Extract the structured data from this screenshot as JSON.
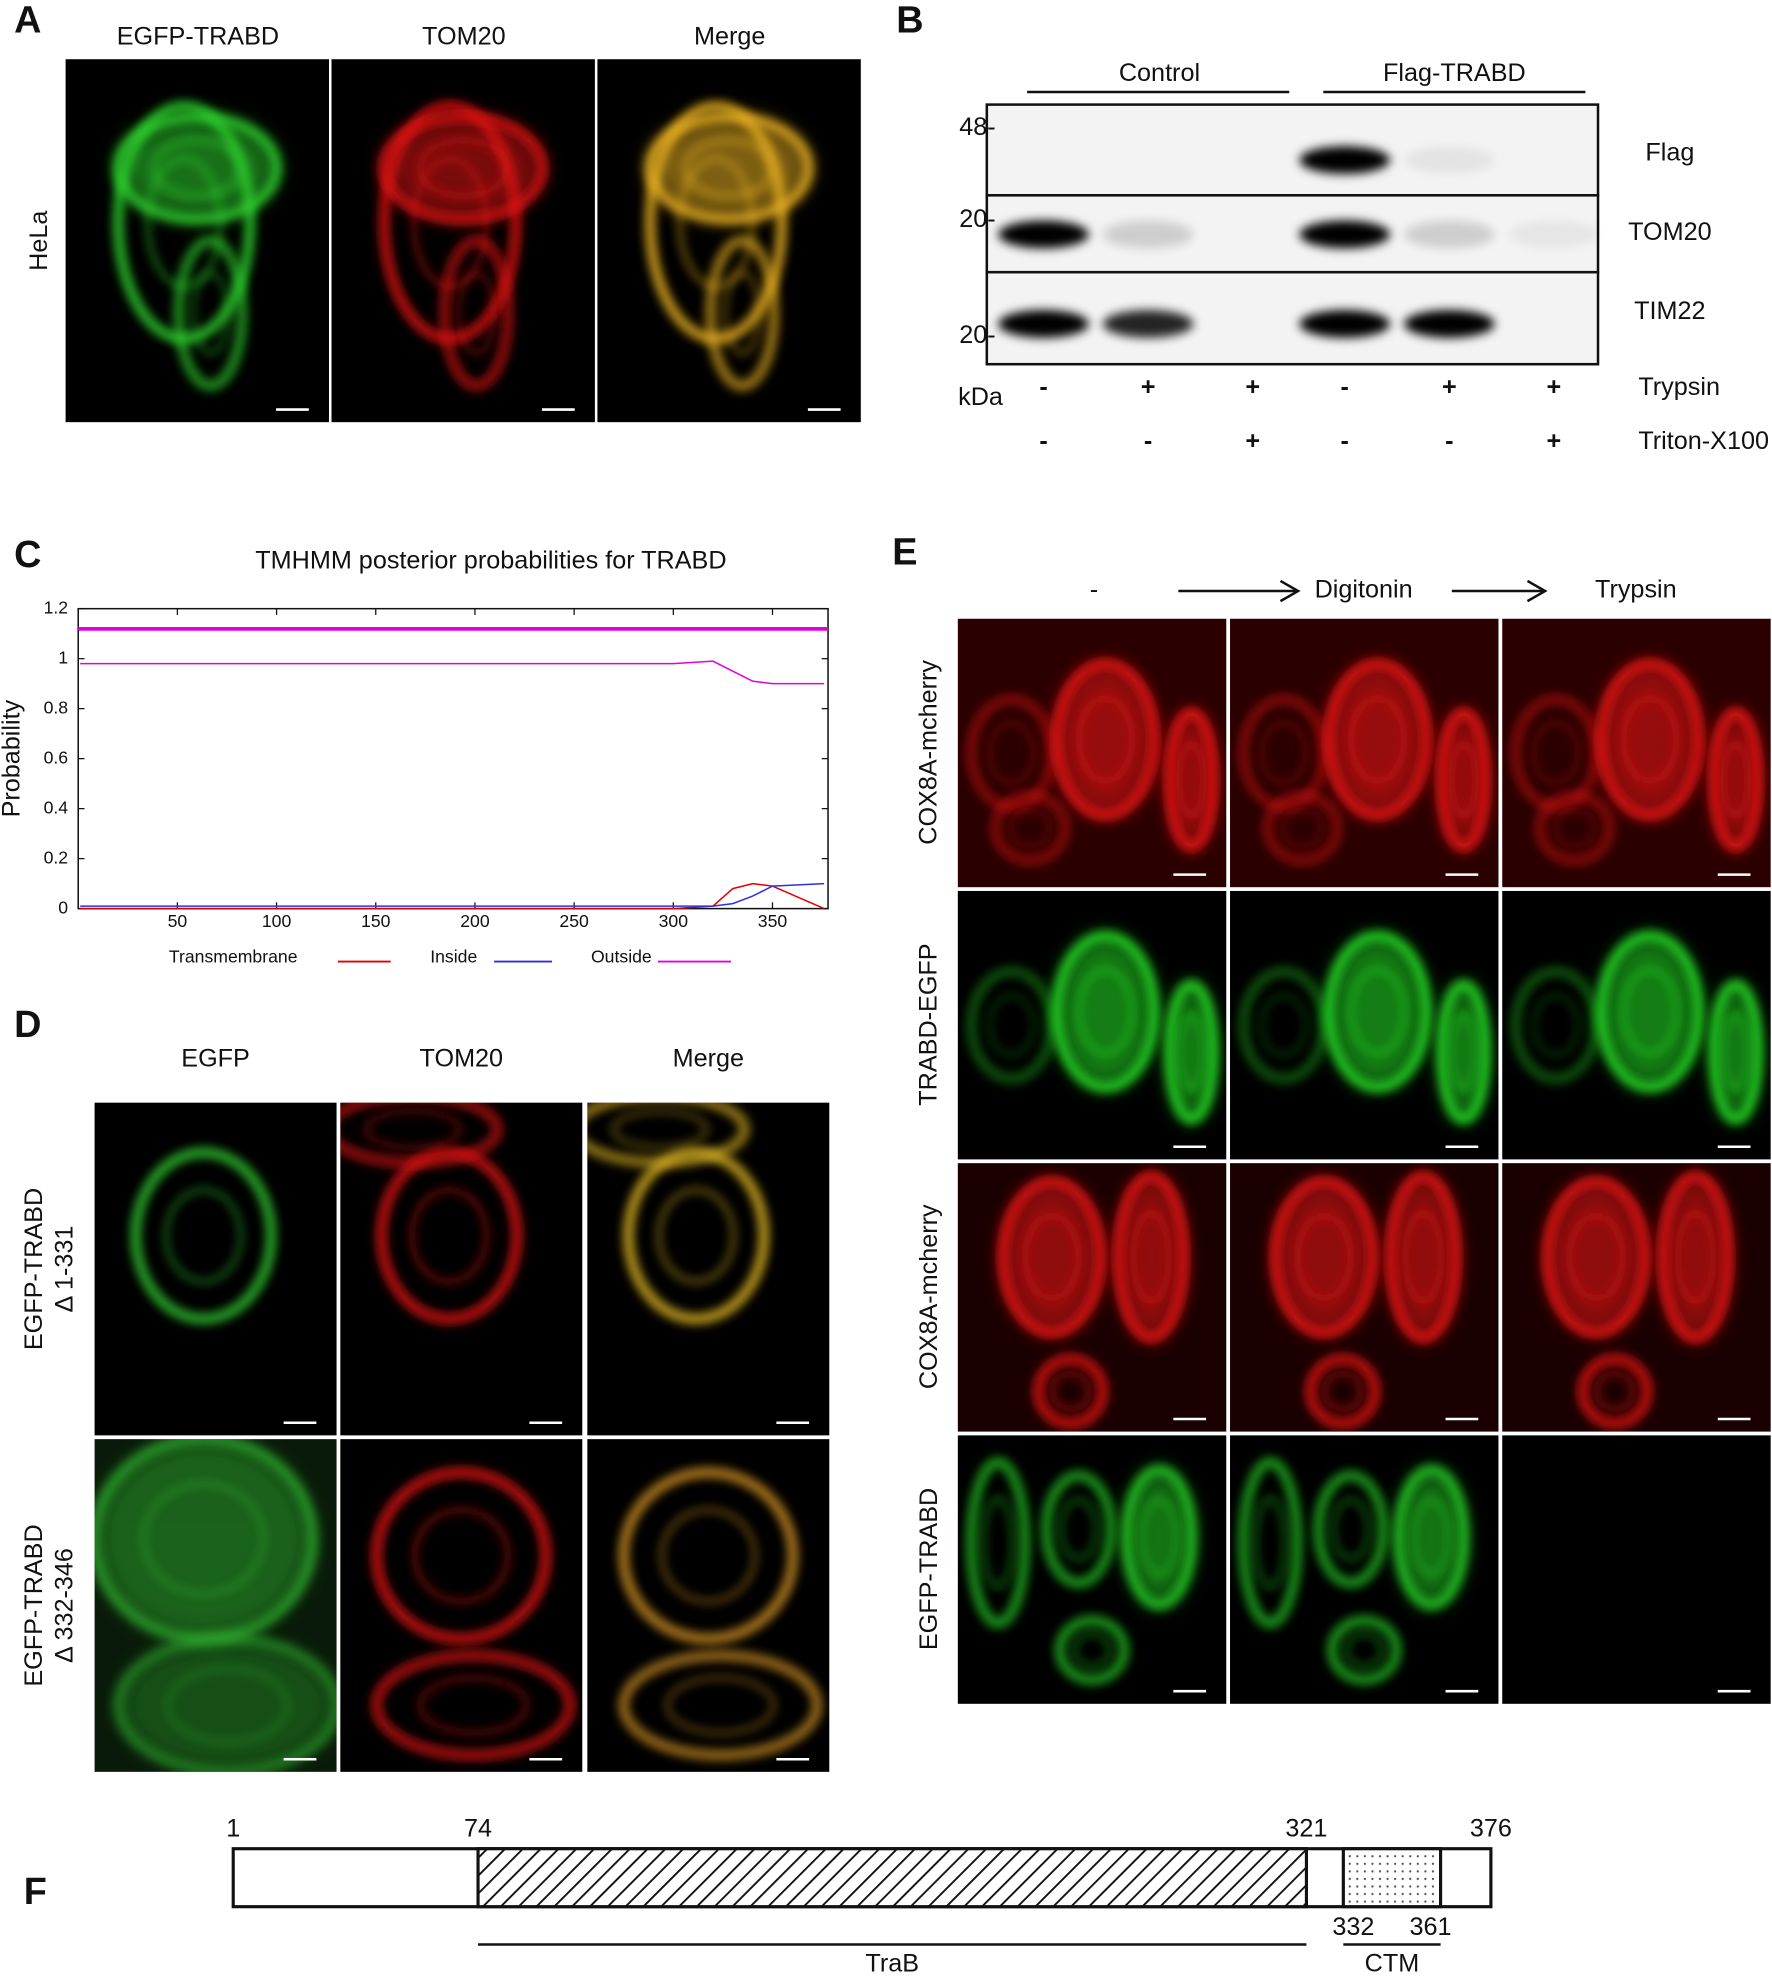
{
  "panel_labels": [
    "A",
    "B",
    "C",
    "D",
    "E",
    "F"
  ],
  "panel_a": {
    "columns": [
      "EGFP-TRABD",
      "TOM20",
      "Merge"
    ],
    "row_label": "HeLa"
  },
  "panel_b": {
    "groups": [
      "Control",
      "Flag-TRABD"
    ],
    "markers": [
      "48-",
      "20-",
      "20-"
    ],
    "unit": "kDa",
    "bands": [
      "Flag",
      "TOM20",
      "TIM22"
    ],
    "treatments": [
      {
        "name": "Trypsin",
        "signs": [
          "-",
          "+",
          "+",
          "-",
          "+",
          "+"
        ]
      },
      {
        "name": "Triton-X100",
        "signs": [
          "-",
          "-",
          "+",
          "-",
          "-",
          "+"
        ]
      }
    ]
  },
  "chart_data": {
    "type": "line",
    "title": "TMHMM posterior probabilities for TRABD",
    "y_label": "Probability",
    "x": [
      1,
      300,
      320,
      330,
      340,
      350,
      376
    ],
    "series": [
      {
        "name": "Transmembrane",
        "color": "#e00000",
        "values": [
          0,
          0,
          0.01,
          0.08,
          0.1,
          0.09,
          0
        ]
      },
      {
        "name": "Inside",
        "color": "#3030e0",
        "values": [
          0.01,
          0.01,
          0.01,
          0.02,
          0.05,
          0.09,
          0.1
        ]
      },
      {
        "name": "Outside",
        "color": "#e000e0",
        "values": [
          0.98,
          0.98,
          0.99,
          0.95,
          0.91,
          0.9,
          0.9
        ]
      }
    ],
    "xlim": [
      0,
      378
    ],
    "ylim": [
      0,
      1.2
    ],
    "xticks": [
      50,
      100,
      150,
      200,
      250,
      300,
      350
    ],
    "yticks": [
      0,
      0.2,
      0.4,
      0.6,
      0.8,
      1,
      1.2
    ]
  },
  "panel_d": {
    "columns": [
      "EGFP",
      "TOM20",
      "Merge"
    ],
    "rows": [
      [
        "EGFP-TRABD",
        "Δ 1-331"
      ],
      [
        "EGFP-TRABD",
        "Δ 332-346"
      ]
    ]
  },
  "panel_e": {
    "steps": [
      "-",
      "Digitonin",
      "Trypsin"
    ],
    "rows": [
      "COX8A-mcherry",
      "TRABD-EGFP",
      "COX8A-mcherry",
      "EGFP-TRABD"
    ]
  },
  "panel_f": {
    "ticks_top": [
      1,
      74,
      321,
      376
    ],
    "ticks_bottom": [
      332,
      361
    ],
    "domains": [
      "TraB",
      "CTM"
    ]
  }
}
